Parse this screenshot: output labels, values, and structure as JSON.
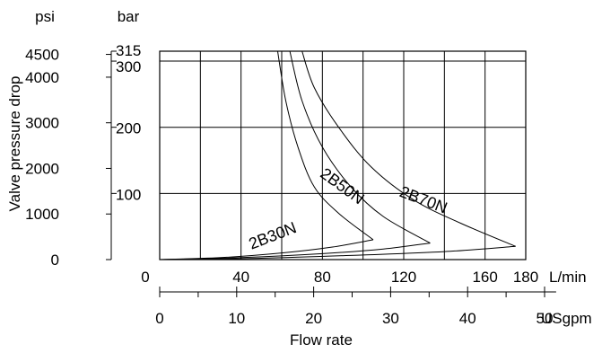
{
  "chart_data": {
    "type": "line",
    "title": "",
    "xlabel": "Flow rate",
    "ylabel": "Valve pressure drop",
    "x_primary": {
      "unit": "L/min",
      "range": [
        0,
        180
      ],
      "ticks": [
        0,
        40,
        80,
        120,
        160,
        180
      ],
      "tick_labels": [
        "0",
        "40",
        "80",
        "120",
        "160",
        "180"
      ],
      "gridlines": [
        20,
        40,
        60,
        80,
        100,
        120,
        140,
        160
      ]
    },
    "x_secondary": {
      "unit": "USgpm",
      "ticks": [
        0,
        10,
        20,
        30,
        40,
        50
      ],
      "tick_labels": [
        "0",
        "10",
        "20",
        "30",
        "40",
        "50"
      ],
      "minor_ticks": [
        5,
        15,
        25,
        35,
        45
      ]
    },
    "y_primary": {
      "unit": "psi",
      "range": [
        0,
        4570
      ],
      "ticks": [
        0,
        1000,
        2000,
        3000,
        4000,
        4500
      ],
      "tick_labels": [
        "0",
        "1000",
        "2000",
        "3000",
        "4000",
        "4500"
      ]
    },
    "y_secondary": {
      "unit": "bar",
      "ticks": [
        100,
        200,
        300,
        315
      ],
      "tick_labels": [
        "100",
        "200",
        "300",
        "315"
      ],
      "gridlines": [
        100,
        200,
        300
      ]
    },
    "grid": true,
    "series": [
      {
        "name": "2B30N",
        "upper": [
          [
            58,
            315
          ],
          [
            62,
            240
          ],
          [
            68,
            170
          ],
          [
            76,
            110
          ],
          [
            88,
            70
          ],
          [
            105,
            30
          ]
        ],
        "lower": [
          [
            0,
            0
          ],
          [
            30,
            3
          ],
          [
            60,
            10
          ],
          [
            85,
            19
          ],
          [
            105,
            30
          ]
        ]
      },
      {
        "name": "2B50N",
        "upper": [
          [
            64,
            315
          ],
          [
            70,
            240
          ],
          [
            80,
            170
          ],
          [
            94,
            110
          ],
          [
            110,
            65
          ],
          [
            133,
            25
          ]
        ],
        "lower": [
          [
            0,
            0
          ],
          [
            40,
            3
          ],
          [
            80,
            9
          ],
          [
            110,
            16
          ],
          [
            133,
            25
          ]
        ]
      },
      {
        "name": "2B70N",
        "upper": [
          [
            70,
            315
          ],
          [
            76,
            260
          ],
          [
            88,
            200
          ],
          [
            104,
            140
          ],
          [
            125,
            90
          ],
          [
            148,
            55
          ],
          [
            175,
            20
          ]
        ],
        "lower": [
          [
            0,
            0
          ],
          [
            50,
            2
          ],
          [
            100,
            7
          ],
          [
            140,
            12
          ],
          [
            175,
            20
          ]
        ]
      }
    ]
  }
}
